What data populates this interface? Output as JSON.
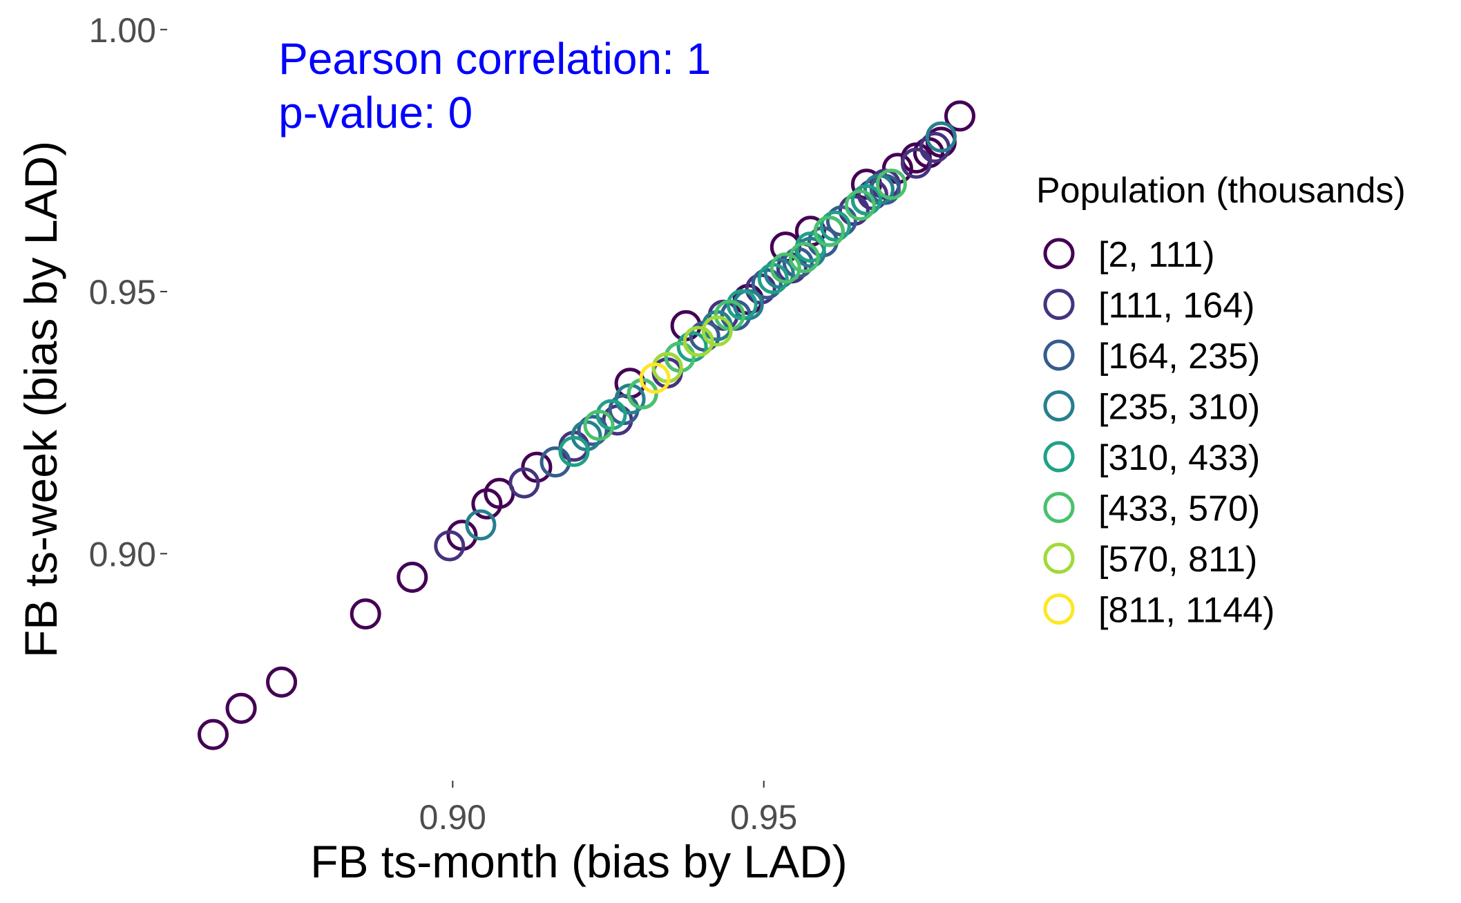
{
  "chart_data": {
    "type": "scatter",
    "xlabel": "FB ts-month (bias by LAD)",
    "ylabel": "FB ts-week (bias by LAD)",
    "xlim": [
      0.855,
      0.986
    ],
    "ylim": [
      0.858,
      1.003
    ],
    "x_ticks": [
      {
        "value": 0.9,
        "label": "0.90"
      },
      {
        "value": 0.95,
        "label": "0.95"
      }
    ],
    "y_ticks": [
      {
        "value": 0.9,
        "label": "0.90"
      },
      {
        "value": 0.95,
        "label": "0.95"
      },
      {
        "value": 1.0,
        "label": "1.00"
      }
    ],
    "grid": false,
    "annotation": {
      "lines": [
        "Pearson correlation:  1",
        "p-value:  0"
      ],
      "color": "#0000ff",
      "anchor": {
        "x": 0.872,
        "y": 0.9915
      }
    },
    "legend": {
      "title": "Population (thousands)",
      "placement": "right",
      "entries": [
        {
          "label": "[2, 111)",
          "color": "#440154"
        },
        {
          "label": "[111, 164)",
          "color": "#46337e"
        },
        {
          "label": "[164, 235)",
          "color": "#365c8d"
        },
        {
          "label": "[235, 310)",
          "color": "#277f8e"
        },
        {
          "label": "[310, 433)",
          "color": "#1fa187"
        },
        {
          "label": "[433, 570)",
          "color": "#4ac16d"
        },
        {
          "label": "[570, 811)",
          "color": "#a0da39"
        },
        {
          "label": "[811, 1144)",
          "color": "#fde725"
        }
      ]
    },
    "series": [
      {
        "name": "[2, 111)",
        "points": [
          [
            0.8615,
            0.8655
          ],
          [
            0.866,
            0.8705
          ],
          [
            0.8725,
            0.8755
          ],
          [
            0.886,
            0.8885
          ],
          [
            0.8935,
            0.8955
          ],
          [
            0.9015,
            0.9035
          ],
          [
            0.9055,
            0.9095
          ],
          [
            0.9075,
            0.9115
          ],
          [
            0.9135,
            0.9165
          ],
          [
            0.9285,
            0.9325
          ],
          [
            0.9375,
            0.9435
          ],
          [
            0.9475,
            0.9485
          ],
          [
            0.9535,
            0.9585
          ],
          [
            0.9575,
            0.9615
          ],
          [
            0.9665,
            0.9705
          ],
          [
            0.9715,
            0.9735
          ],
          [
            0.9745,
            0.9755
          ],
          [
            0.9765,
            0.9765
          ],
          [
            0.9785,
            0.9785
          ],
          [
            0.9815,
            0.9835
          ]
        ]
      },
      {
        "name": "[111, 164)",
        "points": [
          [
            0.8995,
            0.9015
          ],
          [
            0.9115,
            0.9135
          ],
          [
            0.9195,
            0.9205
          ],
          [
            0.9265,
            0.9255
          ],
          [
            0.9305,
            0.9305
          ],
          [
            0.9345,
            0.9345
          ],
          [
            0.9395,
            0.9405
          ],
          [
            0.9435,
            0.9455
          ],
          [
            0.9495,
            0.9505
          ],
          [
            0.9545,
            0.9545
          ],
          [
            0.9605,
            0.9615
          ],
          [
            0.9645,
            0.9655
          ],
          [
            0.9675,
            0.9685
          ],
          [
            0.9695,
            0.9705
          ],
          [
            0.9745,
            0.9745
          ],
          [
            0.9775,
            0.9775
          ]
        ]
      },
      {
        "name": "[164, 235)",
        "points": [
          [
            0.9165,
            0.9175
          ],
          [
            0.9225,
            0.9235
          ],
          [
            0.9275,
            0.9275
          ],
          [
            0.9365,
            0.9375
          ],
          [
            0.9405,
            0.9415
          ],
          [
            0.9455,
            0.9455
          ],
          [
            0.9505,
            0.9515
          ],
          [
            0.9555,
            0.9555
          ],
          [
            0.9595,
            0.9595
          ],
          [
            0.9625,
            0.9635
          ],
          [
            0.9665,
            0.9675
          ],
          [
            0.9695,
            0.9695
          ]
        ]
      },
      {
        "name": "[235, 310)",
        "points": [
          [
            0.9045,
            0.9055
          ],
          [
            0.9215,
            0.9225
          ],
          [
            0.9285,
            0.9295
          ],
          [
            0.9345,
            0.9355
          ],
          [
            0.9425,
            0.9435
          ],
          [
            0.9475,
            0.9475
          ],
          [
            0.9525,
            0.9535
          ],
          [
            0.9575,
            0.9575
          ],
          [
            0.9605,
            0.9615
          ],
          [
            0.9685,
            0.9695
          ],
          [
            0.9785,
            0.9795
          ]
        ]
      },
      {
        "name": "[310, 433)",
        "points": [
          [
            0.9195,
            0.9195
          ],
          [
            0.9255,
            0.9265
          ],
          [
            0.9305,
            0.9305
          ],
          [
            0.9385,
            0.9395
          ],
          [
            0.9465,
            0.9475
          ],
          [
            0.9515,
            0.9525
          ],
          [
            0.9575,
            0.9585
          ],
          [
            0.9615,
            0.9625
          ],
          [
            0.9665,
            0.9675
          ]
        ]
      },
      {
        "name": "[433, 570)",
        "points": [
          [
            0.9235,
            0.9245
          ],
          [
            0.9305,
            0.9305
          ],
          [
            0.9365,
            0.9375
          ],
          [
            0.9445,
            0.9455
          ],
          [
            0.9535,
            0.9545
          ],
          [
            0.9565,
            0.9565
          ],
          [
            0.9605,
            0.9615
          ],
          [
            0.9655,
            0.9665
          ],
          [
            0.9705,
            0.9705
          ]
        ]
      },
      {
        "name": "[570, 811)",
        "points": [
          [
            0.9345,
            0.9355
          ],
          [
            0.9395,
            0.9405
          ],
          [
            0.9425,
            0.9425
          ]
        ]
      },
      {
        "name": "[811, 1144)",
        "points": [
          [
            0.9325,
            0.9335
          ]
        ]
      }
    ]
  }
}
